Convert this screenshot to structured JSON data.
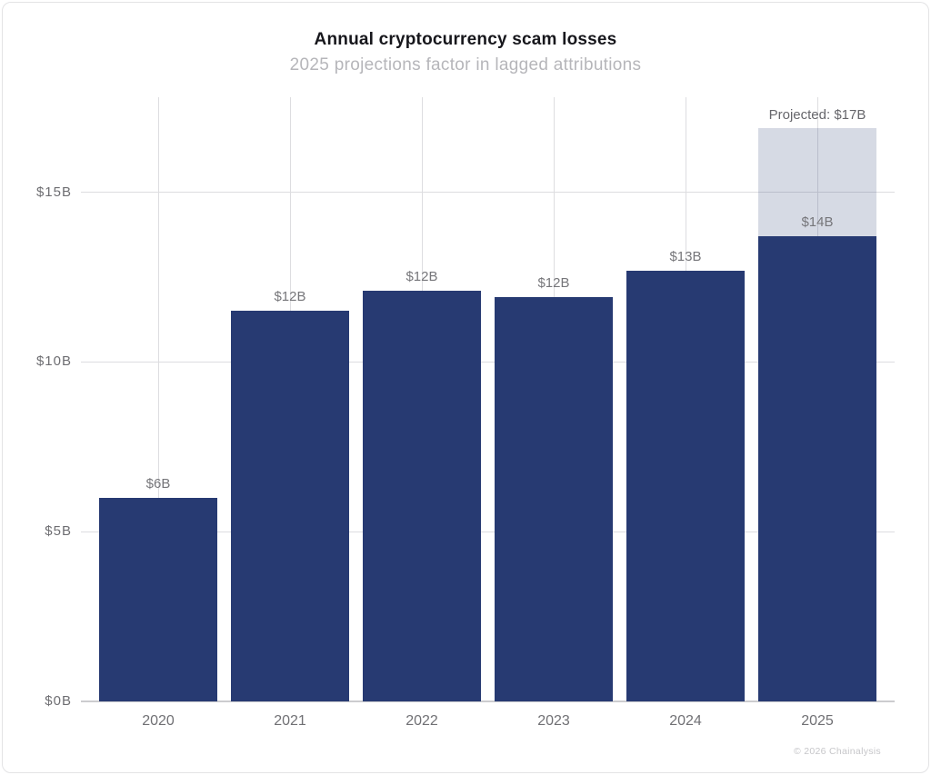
{
  "header": {
    "title": "Annual cryptocurrency scam losses",
    "subtitle": "2025 projections factor in lagged attributions"
  },
  "footer": {
    "credit": "© 2026 Chainalysis"
  },
  "colors": {
    "bar": "#273a72",
    "projected_fill": "#d5d8e6",
    "grid": "#dddde0",
    "axis_line": "#cccccf",
    "title": "#17171c",
    "subtitle": "#b6b6ba",
    "bar_label": "#76767a",
    "axis_label": "#6e6e72",
    "credit": "#c6c6c9"
  },
  "chart_data": {
    "type": "bar",
    "title": "Annual cryptocurrency scam losses",
    "subtitle": "2025 projections factor in lagged attributions",
    "xlabel": "",
    "ylabel": "",
    "categories": [
      "2020",
      "2021",
      "2022",
      "2023",
      "2024",
      "2025"
    ],
    "values": [
      6.0,
      11.5,
      12.1,
      11.9,
      12.7,
      13.7
    ],
    "bar_labels": [
      "$6B",
      "$12B",
      "$12B",
      "$12B",
      "$13B",
      "$14B"
    ],
    "projected": {
      "category": "2025",
      "extra_value": 3.2,
      "total_value": 17,
      "label": "Projected: $17B"
    },
    "yticks": [
      0,
      5,
      10,
      15
    ],
    "ytick_labels": [
      "$0B",
      "$5B",
      "$10B",
      "$15B"
    ],
    "ylim": [
      0,
      17.8
    ],
    "grid": true,
    "legend": false
  }
}
